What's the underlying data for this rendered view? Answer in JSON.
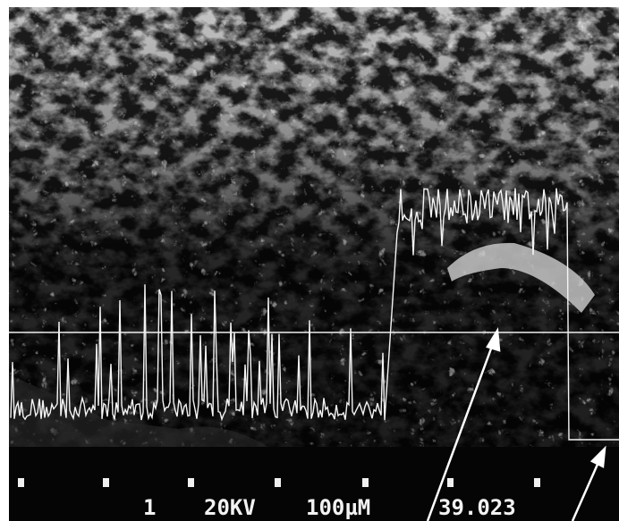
{
  "scale_bar": {
    "micrograph_number": "1",
    "accelerating_voltage": "20KV",
    "scale": "100µM",
    "frame_id": "39.023"
  }
}
